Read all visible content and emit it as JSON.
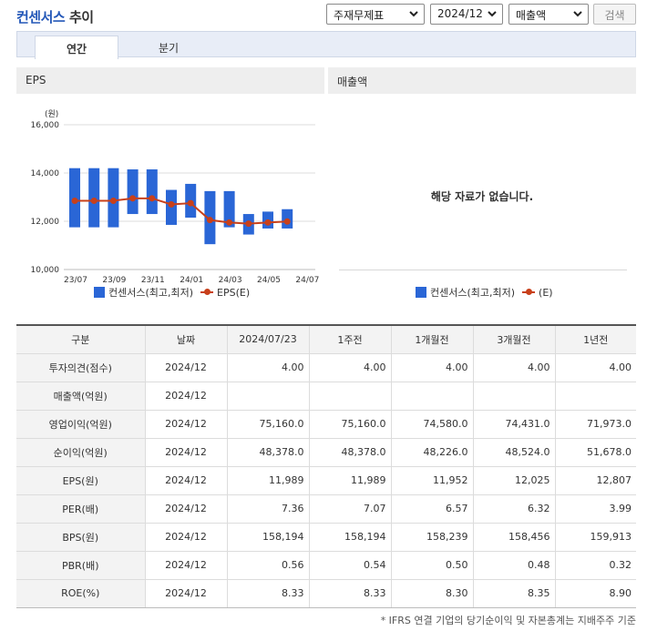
{
  "page": {
    "title_brand": "컨센서스",
    "title_rest": "추이",
    "selects": {
      "type": "주재무제표",
      "period": "2024/12",
      "metric": "매출액"
    },
    "search_label": "검색",
    "tabs": [
      {
        "label": "연간"
      },
      {
        "label": "분기"
      }
    ],
    "left_panel_title": "EPS",
    "right_panel_title": "매출액",
    "no_data": "해당 자료가 없습니다.",
    "legend_left": {
      "bar": "컨센서스(최고,최저)",
      "line": "EPS(E)"
    },
    "legend_right": {
      "bar": "컨센서스(최고,최저)",
      "line": "(E)"
    },
    "footnote": "* IFRS 연결 기업의 당기순이익 및 자본총계는 지배주주 기준"
  },
  "colors": {
    "bar": "#2a66d6",
    "line": "#c8401a",
    "brand": "#2458b8"
  },
  "chart_data": {
    "type": "bar",
    "unit_label": "(원)",
    "ylim": [
      10000,
      16000
    ],
    "yticks": [
      10000,
      12000,
      14000,
      16000
    ],
    "ytick_labels": [
      "10,000",
      "12,000",
      "14,000",
      "16,000"
    ],
    "xtick_labels": [
      "23/07",
      "23/09",
      "23/11",
      "24/01",
      "24/03",
      "24/05",
      "24/07"
    ],
    "grid": true,
    "legend_position": "bottom",
    "series": [
      {
        "name": "컨센서스(최고,최저)",
        "kind": "range",
        "high": [
          14200,
          14200,
          14200,
          14150,
          14150,
          13300,
          13550,
          13250,
          13250,
          12300,
          12400,
          12500
        ],
        "low": [
          11750,
          11750,
          11750,
          12300,
          12300,
          11850,
          12150,
          11050,
          11750,
          11450,
          11700,
          11700
        ]
      },
      {
        "name": "EPS(E)",
        "kind": "line",
        "values": [
          12850,
          12850,
          12850,
          12950,
          12950,
          12700,
          12750,
          12050,
          11950,
          11900,
          11950,
          11989
        ]
      }
    ]
  },
  "table": {
    "headers": [
      "구분",
      "날짜",
      "2024/07/23",
      "1주전",
      "1개월전",
      "3개월전",
      "1년전"
    ],
    "rows": [
      {
        "label": "투자의견(점수)",
        "date": "2024/12",
        "values": [
          "4.00",
          "4.00",
          "4.00",
          "4.00",
          "4.00"
        ]
      },
      {
        "label": "매출액(억원)",
        "date": "2024/12",
        "values": [
          "",
          "",
          "",
          "",
          ""
        ]
      },
      {
        "label": "영업이익(억원)",
        "date": "2024/12",
        "values": [
          "75,160.0",
          "75,160.0",
          "74,580.0",
          "74,431.0",
          "71,973.0"
        ]
      },
      {
        "label": "순이익(억원)",
        "date": "2024/12",
        "values": [
          "48,378.0",
          "48,378.0",
          "48,226.0",
          "48,524.0",
          "51,678.0"
        ]
      },
      {
        "label": "EPS(원)",
        "date": "2024/12",
        "values": [
          "11,989",
          "11,989",
          "11,952",
          "12,025",
          "12,807"
        ]
      },
      {
        "label": "PER(배)",
        "date": "2024/12",
        "values": [
          "7.36",
          "7.07",
          "6.57",
          "6.32",
          "3.99"
        ]
      },
      {
        "label": "BPS(원)",
        "date": "2024/12",
        "values": [
          "158,194",
          "158,194",
          "158,239",
          "158,456",
          "159,913"
        ]
      },
      {
        "label": "PBR(배)",
        "date": "2024/12",
        "values": [
          "0.56",
          "0.54",
          "0.50",
          "0.48",
          "0.32"
        ]
      },
      {
        "label": "ROE(%)",
        "date": "2024/12",
        "values": [
          "8.33",
          "8.33",
          "8.30",
          "8.35",
          "8.90"
        ]
      }
    ]
  }
}
